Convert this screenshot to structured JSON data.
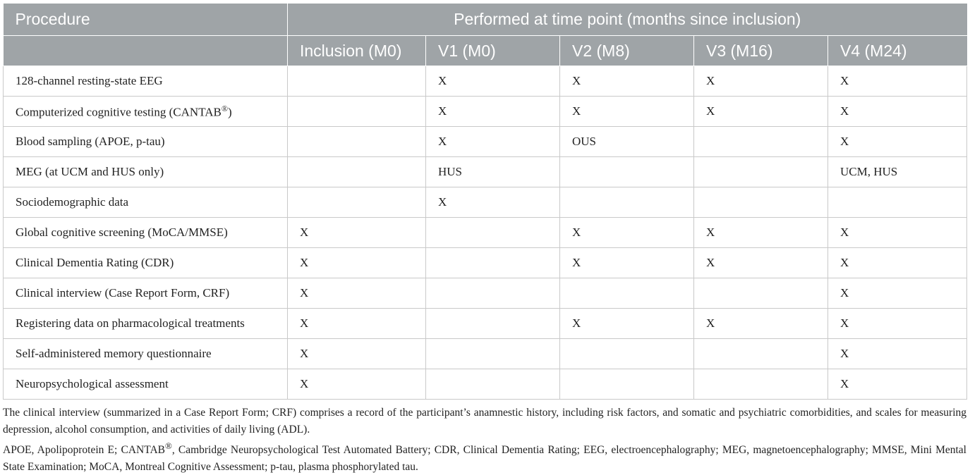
{
  "table": {
    "header": {
      "procedure_label": "Procedure",
      "group_label": "Performed at time point (months since inclusion)",
      "timepoints": [
        "Inclusion (M0)",
        "V1 (M0)",
        "V2 (M8)",
        "V3 (M16)",
        "V4 (M24)"
      ]
    },
    "rows": [
      {
        "procedure": "128-channel resting-state EEG",
        "procedure_sup": "",
        "procedure_suffix": "",
        "cells": [
          "",
          "X",
          "X",
          "X",
          "X"
        ]
      },
      {
        "procedure": "Computerized cognitive testing (CANTAB",
        "procedure_sup": "®",
        "procedure_suffix": ")",
        "cells": [
          "",
          "X",
          "X",
          "X",
          "X"
        ]
      },
      {
        "procedure": "Blood sampling (APOE, p-tau)",
        "procedure_sup": "",
        "procedure_suffix": "",
        "cells": [
          "",
          "X",
          "OUS",
          "",
          "X"
        ]
      },
      {
        "procedure": "MEG (at UCM and HUS only)",
        "procedure_sup": "",
        "procedure_suffix": "",
        "cells": [
          "",
          "HUS",
          "",
          "",
          "UCM, HUS"
        ]
      },
      {
        "procedure": "Sociodemographic data",
        "procedure_sup": "",
        "procedure_suffix": "",
        "cells": [
          "",
          "X",
          "",
          "",
          ""
        ]
      },
      {
        "procedure": "Global cognitive screening (MoCA/MMSE)",
        "procedure_sup": "",
        "procedure_suffix": "",
        "cells": [
          "X",
          "",
          "X",
          "X",
          "X"
        ]
      },
      {
        "procedure": "Clinical Dementia Rating (CDR)",
        "procedure_sup": "",
        "procedure_suffix": "",
        "cells": [
          "X",
          "",
          "X",
          "X",
          "X"
        ]
      },
      {
        "procedure": "Clinical interview (Case Report Form, CRF)",
        "procedure_sup": "",
        "procedure_suffix": "",
        "cells": [
          "X",
          "",
          "",
          "",
          "X"
        ]
      },
      {
        "procedure": "Registering data on pharmacological treatments",
        "procedure_sup": "",
        "procedure_suffix": "",
        "cells": [
          "X",
          "",
          "X",
          "X",
          "X"
        ]
      },
      {
        "procedure": "Self-administered memory questionnaire",
        "procedure_sup": "",
        "procedure_suffix": "",
        "cells": [
          "X",
          "",
          "",
          "",
          "X"
        ]
      },
      {
        "procedure": "Neuropsychological assessment",
        "procedure_sup": "",
        "procedure_suffix": "",
        "cells": [
          "X",
          "",
          "",
          "",
          "X"
        ]
      }
    ]
  },
  "footnotes": {
    "note1": "The clinical interview (summarized in a Case Report Form; CRF) comprises a record of the participant’s anamnestic history, including risk factors, and somatic and psychiatric comorbidities, and scales for measuring depression, alcohol consumption, and activities of daily living (ADL).",
    "note2_pre": "APOE, Apolipoprotein E; CANTAB",
    "note2_sup": "®",
    "note2_post": ", Cambridge Neuropsychological Test Automated Battery; CDR, Clinical Dementia Rating; EEG, electroencephalography; MEG, magnetoencephalography; MMSE, Mini Mental State Examination; MoCA, Montreal Cognitive Assessment; p-tau, plasma phosphorylated tau."
  },
  "colors": {
    "header_bg": "#9fa4a7",
    "header_text": "#ffffff",
    "grid_line": "#c9c9c9",
    "body_text": "#222222"
  }
}
